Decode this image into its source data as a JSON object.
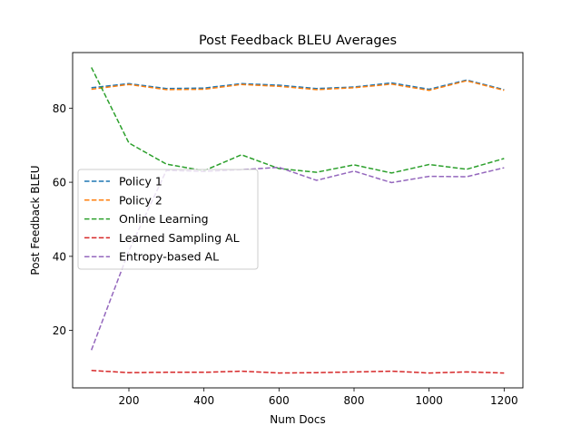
{
  "chart_data": {
    "type": "line",
    "title": "Post Feedback BLEU Averages",
    "xlabel": "Num Docs",
    "ylabel": "Post Feedback BLEU",
    "xlim": [
      50,
      1250
    ],
    "ylim": [
      4.5,
      95
    ],
    "xticks": [
      200,
      400,
      600,
      800,
      1000,
      1200
    ],
    "yticks": [
      20,
      40,
      60,
      80
    ],
    "x": [
      100,
      200,
      300,
      400,
      500,
      600,
      700,
      800,
      900,
      1000,
      1100,
      1200
    ],
    "grid": false,
    "legend_position": "center-left",
    "series": [
      {
        "name": "Policy 1",
        "color": "#1f77b4",
        "values": [
          85.5,
          86.6,
          85.3,
          85.4,
          86.6,
          86.2,
          85.3,
          85.7,
          86.8,
          85.1,
          87.6,
          85.0
        ]
      },
      {
        "name": "Policy 2",
        "color": "#ff7f0e",
        "values": [
          85.1,
          86.4,
          85.0,
          85.1,
          86.4,
          85.9,
          85.0,
          85.5,
          86.5,
          84.8,
          87.4,
          84.8
        ]
      },
      {
        "name": "Online Learning",
        "color": "#2ca02c",
        "values": [
          91.0,
          70.6,
          64.9,
          63.1,
          67.4,
          63.7,
          62.7,
          64.7,
          62.5,
          64.8,
          63.5,
          66.4
        ]
      },
      {
        "name": "Learned Sampling AL",
        "color": "#d62728",
        "values": [
          9.2,
          8.6,
          8.7,
          8.7,
          9.0,
          8.5,
          8.6,
          8.8,
          9.0,
          8.5,
          8.8,
          8.5
        ]
      },
      {
        "name": "Entropy-based AL",
        "color": "#9467bd",
        "values": [
          14.7,
          41.5,
          63.2,
          62.9,
          63.4,
          64.0,
          60.5,
          63.0,
          59.9,
          61.6,
          61.5,
          63.9
        ]
      }
    ]
  }
}
